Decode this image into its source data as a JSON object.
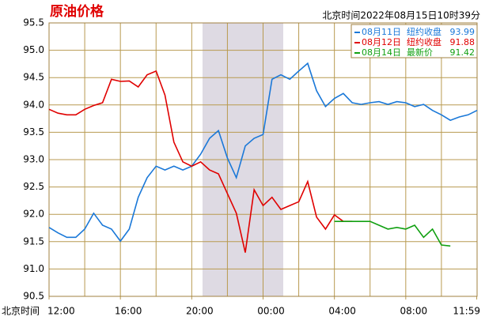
{
  "chart_data": {
    "type": "line",
    "title": "原油价格",
    "subtitle": "北京时间2022年08月15日10时39分",
    "x_label": "北京时间",
    "x": [
      0,
      0.5,
      1,
      1.5,
      2,
      2.5,
      3,
      3.5,
      4,
      4.5,
      5,
      5.5,
      6,
      6.5,
      7,
      7.5,
      8,
      8.5,
      9,
      9.5,
      10,
      10.5,
      11,
      11.5,
      12,
      12.5,
      13,
      13.5,
      14,
      14.5,
      15,
      15.5,
      16,
      16.5,
      17,
      17.5,
      18,
      18.5,
      19,
      19.5,
      20,
      20.5,
      21,
      21.5,
      22,
      22.5,
      23,
      23.5,
      24
    ],
    "xlim": [
      0,
      24
    ],
    "xticks": [
      {
        "value": 0,
        "label": "12:00"
      },
      {
        "value": 4,
        "label": "16:00"
      },
      {
        "value": 8,
        "label": "20:00"
      },
      {
        "value": 12,
        "label": "00:00"
      },
      {
        "value": 16,
        "label": "04:00"
      },
      {
        "value": 20,
        "label": "08:00"
      },
      {
        "value": 23.98,
        "label": "11:59"
      }
    ],
    "xgrid": [
      2,
      4,
      6,
      8,
      10,
      12,
      14,
      16,
      18,
      20,
      22
    ],
    "ylim": [
      90.5,
      95.5
    ],
    "yticks": [
      95.5,
      {
        "value": 95,
        "label": "95.0"
      },
      94.5,
      {
        "value": 94,
        "label": "94.0"
      },
      93.5,
      {
        "value": 93,
        "label": "93.0"
      },
      92.5,
      {
        "value": 92,
        "label": "92.0"
      },
      91.5,
      {
        "value": 91,
        "label": "91.0"
      },
      90.5
    ],
    "grid": true,
    "series": [
      {
        "name": "08月11日",
        "legend_label": "纽约收盘",
        "legend_value": "93.99",
        "color": "#1a78d8",
        "values": [
          91.76,
          91.66,
          91.58,
          91.58,
          91.73,
          92.02,
          91.8,
          91.73,
          91.51,
          91.73,
          92.31,
          92.67,
          92.88,
          92.81,
          92.88,
          92.81,
          92.88,
          93.1,
          93.39,
          93.53,
          93.03,
          92.67,
          93.25,
          93.39,
          93.46,
          94.47,
          94.55,
          94.47,
          94.62,
          94.76,
          94.26,
          93.97,
          94.12,
          94.21,
          94.04,
          94.01,
          94.04,
          94.06,
          94.01,
          94.06,
          94.04,
          93.97,
          94.01,
          93.9,
          93.82,
          93.72,
          93.78,
          93.82,
          93.9
        ]
      },
      {
        "name": "08月12日",
        "legend_label": "纽约收盘",
        "legend_value": "91.88",
        "color": "#e00000",
        "values": [
          93.92,
          93.85,
          93.82,
          93.82,
          93.92,
          93.99,
          94.04,
          94.47,
          94.43,
          94.44,
          94.33,
          94.55,
          94.62,
          94.18,
          93.32,
          92.96,
          92.88,
          92.96,
          92.81,
          92.74,
          92.38,
          92.02,
          91.3,
          92.45,
          92.16,
          92.31,
          92.09,
          92.16,
          92.23,
          92.6,
          91.95,
          91.73,
          91.99,
          91.87,
          91.87,
          null,
          null,
          null,
          null,
          null,
          null,
          null,
          null,
          null,
          null,
          null,
          null,
          null,
          null
        ]
      },
      {
        "name": "08月14日",
        "legend_label": "最新价",
        "legend_value": "91.42",
        "color": "#11a011",
        "values": [
          null,
          null,
          null,
          null,
          null,
          null,
          null,
          null,
          null,
          null,
          null,
          null,
          null,
          null,
          null,
          null,
          null,
          null,
          null,
          null,
          null,
          null,
          null,
          null,
          null,
          null,
          null,
          null,
          null,
          null,
          null,
          null,
          91.87,
          91.87,
          91.87,
          91.87,
          91.87,
          91.8,
          91.73,
          91.76,
          91.73,
          91.8,
          91.58,
          91.73,
          91.44,
          91.42,
          null,
          null,
          null
        ]
      }
    ]
  }
}
